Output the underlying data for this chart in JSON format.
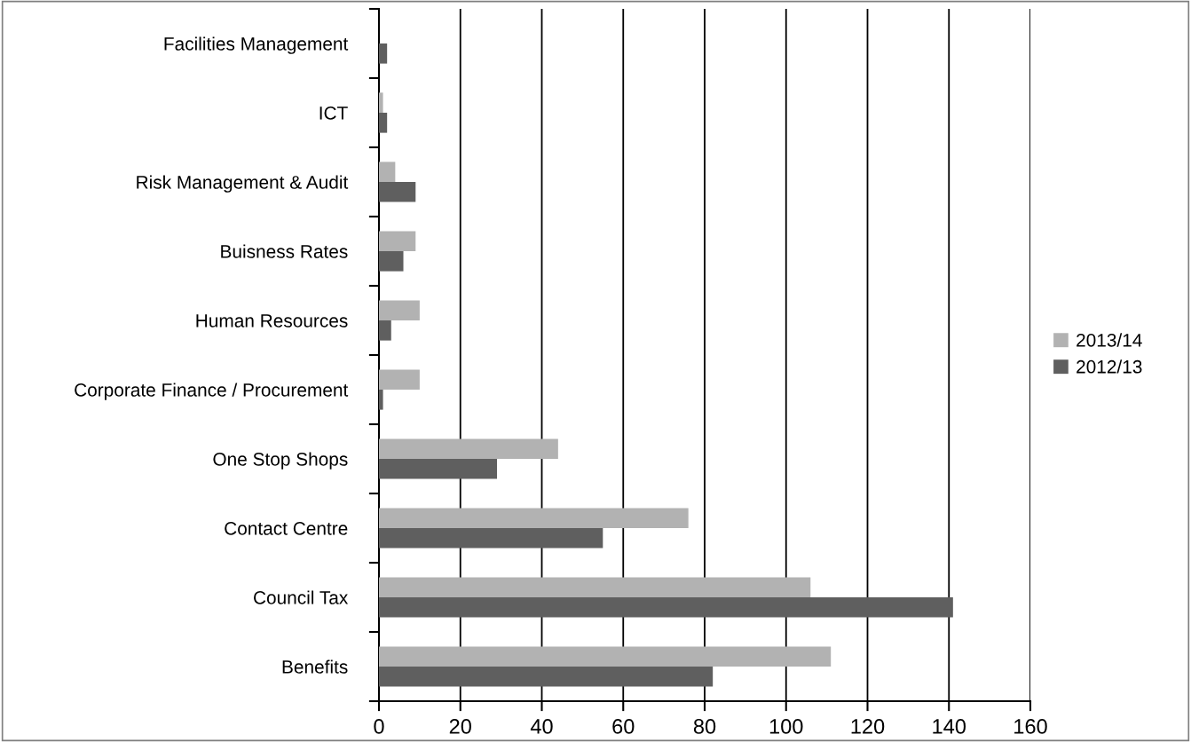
{
  "chart_data": {
    "type": "bar",
    "orientation": "horizontal",
    "categories": [
      "Facilities Management",
      "ICT",
      "Risk Management & Audit",
      "Buisness Rates",
      "Human Resources",
      "Corporate Finance / Procurement",
      "One Stop Shops",
      "Contact Centre",
      "Council Tax",
      "Benefits"
    ],
    "series": [
      {
        "name": "2013/14",
        "color": "#b2b2b2",
        "values": [
          null,
          1,
          4,
          9,
          10,
          10,
          44,
          76,
          106,
          111
        ]
      },
      {
        "name": "2012/13",
        "color": "#5f5f5f",
        "values": [
          2,
          2,
          9,
          6,
          3,
          1,
          29,
          55,
          141,
          82
        ]
      }
    ],
    "xlim": [
      0,
      160
    ],
    "xticks": [
      0,
      20,
      40,
      60,
      80,
      100,
      120,
      140,
      160
    ],
    "grid": "x",
    "legend": "right"
  }
}
